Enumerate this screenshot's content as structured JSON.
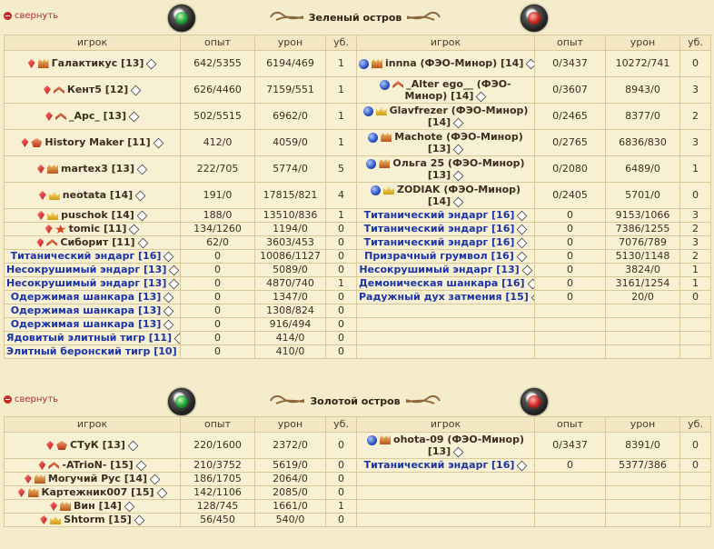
{
  "collapse_label": "свернуть",
  "headers": {
    "player": "игрок",
    "exp": "опыт",
    "dmg": "урон",
    "kills": "уб."
  },
  "sections": [
    {
      "title": "Зеленый остров",
      "left": [
        {
          "name": "Галактикус [13]",
          "gem": true,
          "rank": "badge",
          "exp": "642/5355",
          "dmg": "6194/469",
          "kills": "1",
          "tall": true
        },
        {
          "name": "Кент5 [12]",
          "gem": true,
          "rank": "chev",
          "exp": "626/4460",
          "dmg": "7159/551",
          "kills": "1",
          "tall": true
        },
        {
          "name": "_Арс_ [13]",
          "gem": true,
          "rank": "chev",
          "exp": "502/5515",
          "dmg": "6962/0",
          "kills": "1",
          "tall": true
        },
        {
          "name": "History Maker [11]",
          "gem": true,
          "rank": "wing",
          "exp": "412/0",
          "dmg": "4059/0",
          "kills": "1",
          "tall": true
        },
        {
          "name": "martex3 [13]",
          "gem": true,
          "rank": "badge",
          "exp": "222/705",
          "dmg": "5774/0",
          "kills": "5",
          "tall": true
        },
        {
          "name": "neotata [14]",
          "gem": true,
          "rank": "crown",
          "exp": "191/0",
          "dmg": "17815/821",
          "kills": "4",
          "tall": true
        },
        {
          "name": "puschok [14]",
          "gem": true,
          "rank": "crown",
          "exp": "188/0",
          "dmg": "13510/836",
          "kills": "1"
        },
        {
          "name": "tomic [11]",
          "gem": true,
          "rank": "star",
          "exp": "134/1260",
          "dmg": "1194/0",
          "kills": "0"
        },
        {
          "name": "Сиборит [11]",
          "gem": true,
          "rank": "chev",
          "exp": "62/0",
          "dmg": "3603/453",
          "kills": "0"
        },
        {
          "name": "Титанический эндарг [16]",
          "bot": true,
          "exp": "0",
          "dmg": "10086/1127",
          "kills": "0"
        },
        {
          "name": "Несокрушимый эндарг [13]",
          "bot": true,
          "exp": "0",
          "dmg": "5089/0",
          "kills": "0"
        },
        {
          "name": "Несокрушимый эндарг [13]",
          "bot": true,
          "exp": "0",
          "dmg": "4870/740",
          "kills": "1"
        },
        {
          "name": "Одержимая шанкара [13]",
          "bot": true,
          "exp": "0",
          "dmg": "1347/0",
          "kills": "0"
        },
        {
          "name": "Одержимая шанкара [13]",
          "bot": true,
          "exp": "0",
          "dmg": "1308/824",
          "kills": "0"
        },
        {
          "name": "Одержимая шанкара [13]",
          "bot": true,
          "exp": "0",
          "dmg": "916/494",
          "kills": "0"
        },
        {
          "name": "Ядовитый элитный тигр [11]",
          "bot": true,
          "exp": "0",
          "dmg": "414/0",
          "kills": "0"
        },
        {
          "name": "Элитный беронский тигр [10]",
          "bot": true,
          "exp": "0",
          "dmg": "410/0",
          "kills": "0"
        }
      ],
      "right": [
        {
          "name": "innna (ФЭО-Минор) [14]",
          "sphere": true,
          "rank": "badge",
          "exp": "0/3437",
          "dmg": "10272/741",
          "kills": "0",
          "tall": true
        },
        {
          "name": "_Alter ego__ (ФЭО-Минор) [14]",
          "sphere": true,
          "rank": "chev",
          "exp": "0/3607",
          "dmg": "8943/0",
          "kills": "3",
          "tall": true,
          "wrap": true
        },
        {
          "name": "Glavfrezer (ФЭО-Минор) [14]",
          "sphere": true,
          "rank": "crown",
          "exp": "0/2465",
          "dmg": "8377/0",
          "kills": "2",
          "tall": true,
          "wrap": true
        },
        {
          "name": "Machote (ФЭО-Минор) [13]",
          "sphere": true,
          "rank": "badge",
          "exp": "0/2765",
          "dmg": "6836/830",
          "kills": "3",
          "tall": true,
          "wrap": true
        },
        {
          "name": "Ольга 25 (ФЭО-Минор) [13]",
          "sphere": true,
          "rank": "badge",
          "exp": "0/2080",
          "dmg": "6489/0",
          "kills": "1",
          "tall": true,
          "wrap": true
        },
        {
          "name": "ZODIAK (ФЭО-Минор) [14]",
          "sphere": true,
          "rank": "crown",
          "exp": "0/2405",
          "dmg": "5701/0",
          "kills": "0",
          "tall": true,
          "wrap": true
        },
        {
          "name": "Титанический эндарг [16]",
          "bot": true,
          "exp": "0",
          "dmg": "9153/1066",
          "kills": "3"
        },
        {
          "name": "Титанический эндарг [16]",
          "bot": true,
          "exp": "0",
          "dmg": "7386/1255",
          "kills": "2"
        },
        {
          "name": "Титанический эндарг [16]",
          "bot": true,
          "exp": "0",
          "dmg": "7076/789",
          "kills": "3"
        },
        {
          "name": "Призрачный грумвол [16]",
          "bot": true,
          "exp": "0",
          "dmg": "5130/1148",
          "kills": "2"
        },
        {
          "name": "Несокрушимый эндарг [13]",
          "bot": true,
          "exp": "0",
          "dmg": "3824/0",
          "kills": "1"
        },
        {
          "name": "Демоническая шанкара [16]",
          "bot": true,
          "exp": "0",
          "dmg": "3161/1254",
          "kills": "1"
        },
        {
          "name": "Радужный дух затмения [15]",
          "bot": true,
          "exp": "0",
          "dmg": "20/0",
          "kills": "0"
        }
      ]
    },
    {
      "title": "Золотой остров",
      "left": [
        {
          "name": "СТуК [13]",
          "gem": true,
          "rank": "wing",
          "exp": "220/1600",
          "dmg": "2372/0",
          "kills": "0",
          "tall": true
        },
        {
          "name": "-ATrioN- [15]",
          "gem": true,
          "rank": "chev",
          "exp": "210/3752",
          "dmg": "5619/0",
          "kills": "0"
        },
        {
          "name": "Могучий Рус [14]",
          "gem": true,
          "rank": "badge",
          "exp": "186/1705",
          "dmg": "2064/0",
          "kills": "0"
        },
        {
          "name": "Картежник007 [15]",
          "gem": true,
          "rank": "badge",
          "exp": "142/1106",
          "dmg": "2085/0",
          "kills": "0"
        },
        {
          "name": "Вин [14]",
          "gem": true,
          "rank": "badge",
          "exp": "128/745",
          "dmg": "1661/0",
          "kills": "1"
        },
        {
          "name": "Shtorm [15]",
          "gem": true,
          "rank": "crown",
          "exp": "56/450",
          "dmg": "540/0",
          "kills": "0"
        }
      ],
      "right": [
        {
          "name": "ohota-09 (ФЭО-Минор) [13]",
          "sphere": true,
          "rank": "badge",
          "exp": "0/3437",
          "dmg": "8391/0",
          "kills": "0",
          "tall": true,
          "wrap": true
        },
        {
          "name": "Титанический эндарг [16]",
          "bot": true,
          "exp": "0",
          "dmg": "5377/386",
          "kills": "0"
        }
      ]
    }
  ]
}
